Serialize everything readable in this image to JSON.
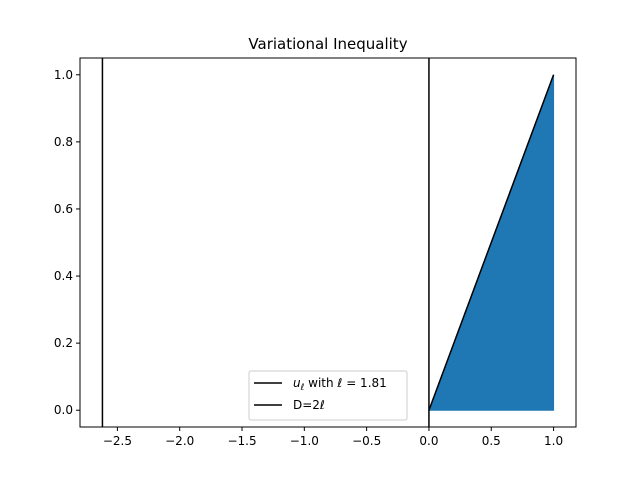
{
  "chart_data": {
    "type": "line",
    "title": "Variational Inequality",
    "xlabel": "",
    "ylabel": "",
    "xlim": [
      -2.8,
      1.18
    ],
    "ylim": [
      -0.05,
      1.05
    ],
    "x_ticks": [
      -2.5,
      -2.0,
      -1.5,
      -1.0,
      -0.5,
      0.0,
      0.5,
      1.0
    ],
    "x_tick_labels": [
      "−2.5",
      "−2.0",
      "−1.5",
      "−1.0",
      "−0.5",
      "0.0",
      "0.5",
      "1.0"
    ],
    "y_ticks": [
      0.0,
      0.2,
      0.4,
      0.6,
      0.8,
      1.0
    ],
    "y_tick_labels": [
      "0.0",
      "0.2",
      "0.4",
      "0.6",
      "0.8",
      "1.0"
    ],
    "grid": false,
    "series": [
      {
        "name": "u_ℓ with ℓ = 1.81",
        "label_parts": {
          "symbol": "u",
          "subscript": "ℓ",
          "rest": " with ℓ = 1.81"
        },
        "type": "line",
        "color": "#000000",
        "x": [
          0.0,
          1.0
        ],
        "y": [
          0.0,
          1.0
        ]
      },
      {
        "name": "D=2ℓ",
        "type": "vline",
        "color": "#000000",
        "x_values": [
          -2.62,
          0.0
        ]
      }
    ],
    "fill": {
      "color": "#1f77b4",
      "x": [
        0.0,
        1.0
      ],
      "y_lower": [
        0.0,
        0.0
      ],
      "y_upper": [
        0.0,
        1.0
      ]
    },
    "legend": {
      "placement": "lower center"
    }
  }
}
